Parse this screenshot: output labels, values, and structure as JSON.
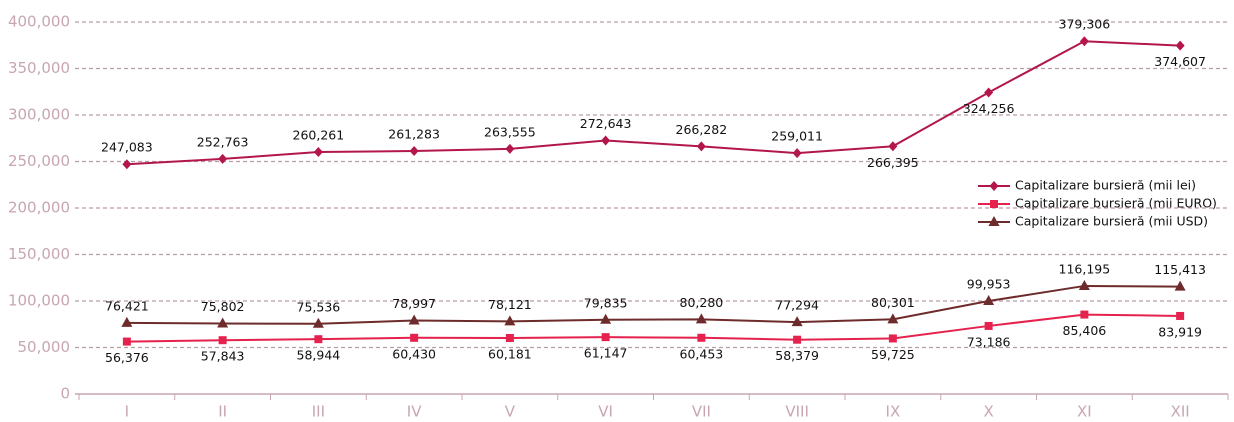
{
  "chart_data": {
    "type": "line",
    "categories": [
      "I",
      "II",
      "III",
      "IV",
      "V",
      "VI",
      "VII",
      "VIII",
      "IX",
      "X",
      "XI",
      "XII"
    ],
    "series": [
      {
        "name": "Capitalizare bursieră (mii lei)",
        "color": "#b3164b",
        "marker": "diamond",
        "values": [
          247083,
          252763,
          260261,
          261283,
          263555,
          272643,
          266282,
          259011,
          266395,
          324256,
          379306,
          374607
        ],
        "value_labels": [
          "247,083",
          "252,763",
          "260,261",
          "261,283",
          "263,555",
          "272,643",
          "266,282",
          "259,011",
          "266,395",
          "324,256",
          "379,306",
          "374,607"
        ]
      },
      {
        "name": "Capitalizare bursieră (mii EURO)",
        "color": "#e5224d",
        "marker": "square",
        "values": [
          56376,
          57843,
          58944,
          60430,
          60181,
          61147,
          60453,
          58379,
          59725,
          73186,
          85406,
          83919
        ],
        "value_labels": [
          "56,376",
          "57,843",
          "58,944",
          "60,430",
          "60,181",
          "61,147",
          "60,453",
          "58,379",
          "59,725",
          "73,186",
          "85,406",
          "83,919"
        ]
      },
      {
        "name": "Capitalizare  bursieră (mii USD)",
        "color": "#6e2b2b",
        "marker": "triangle",
        "values": [
          76421,
          75802,
          75536,
          78997,
          78121,
          79835,
          80280,
          77294,
          80301,
          99953,
          116195,
          115413
        ],
        "value_labels": [
          "76,421",
          "75,802",
          "75,536",
          "78,997",
          "78,121",
          "79,835",
          "80,280",
          "77,294",
          "80,301",
          "99,953",
          "116,195",
          "115,413"
        ]
      }
    ],
    "ylim": [
      0,
      400000
    ],
    "yticks": [
      0,
      {
        "value": 50000,
        "label": "50,000"
      },
      {
        "value": 100000,
        "label": "100,000"
      },
      {
        "value": 150000,
        "label": "150,000"
      },
      {
        "value": 200000,
        "label": "200,000"
      },
      {
        "value": 250000,
        "label": "250,000"
      },
      {
        "value": 300000,
        "label": "300,000"
      },
      {
        "value": 350000,
        "label": "350,000"
      },
      {
        "value": 400000,
        "label": "400,000"
      }
    ],
    "grid": true,
    "legend": "right"
  }
}
